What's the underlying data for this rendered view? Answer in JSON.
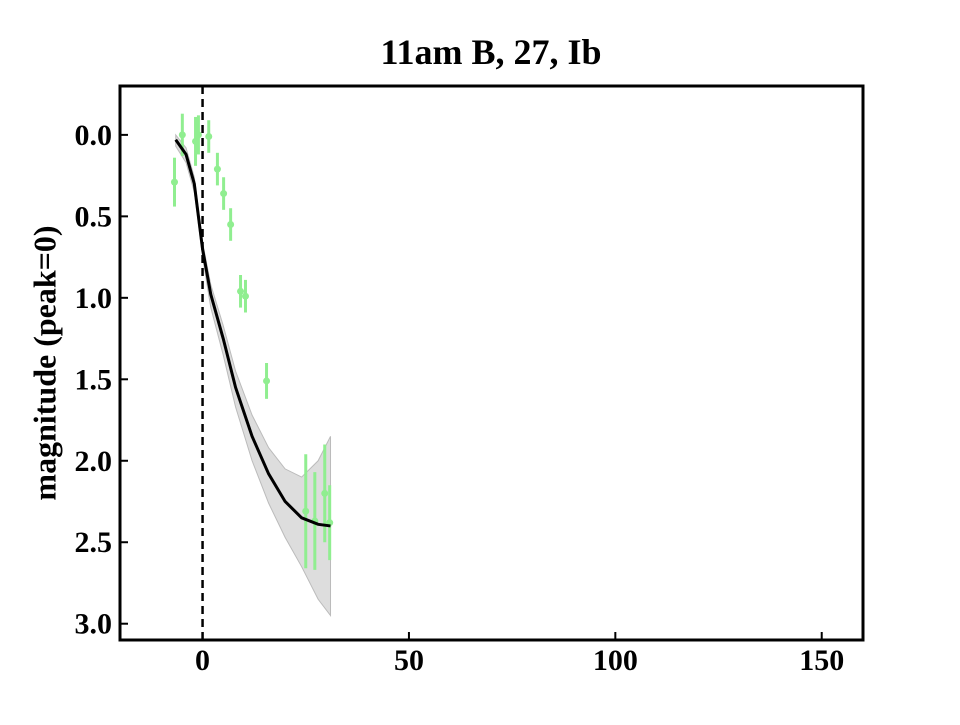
{
  "chart_data": {
    "type": "scatter",
    "title": "11am B, 27, Ib",
    "ylabel": "magnitude (peak=0)",
    "xlim": [
      -20,
      160
    ],
    "ylim": [
      -0.3,
      3.1
    ],
    "invert_y": true,
    "xticks": [
      0,
      50,
      100,
      150
    ],
    "yticks": [
      {
        "value": 0,
        "label": "0.0"
      },
      {
        "value": 0.5,
        "label": "0.5"
      },
      {
        "value": 1,
        "label": "1.0"
      },
      {
        "value": 1.5,
        "label": "1.5"
      },
      {
        "value": 2,
        "label": "2.0"
      },
      {
        "value": 2.5,
        "label": "2.5"
      },
      {
        "value": 3,
        "label": "3.0"
      }
    ],
    "vline": 0,
    "points": {
      "color": "#90ee90",
      "x": [
        -6.8,
        -4.9,
        -1.7,
        -1,
        1.5,
        3.6,
        5.1,
        6.8,
        9.2,
        10.4,
        15.5,
        25,
        27.2,
        29.6,
        30.8
      ],
      "values": [
        0.29,
        0.0,
        0.04,
        0.0,
        0.01,
        0.21,
        0.36,
        0.55,
        0.96,
        0.99,
        1.51,
        2.31,
        2.37,
        2.2,
        2.38
      ],
      "errors": [
        0.15,
        0.13,
        0.15,
        0.12,
        0.1,
        0.1,
        0.1,
        0.1,
        0.1,
        0.1,
        0.11,
        0.35,
        0.3,
        0.3,
        0.23
      ]
    },
    "fit": {
      "color": "#000000",
      "band_color": "#bbbbbb",
      "x": [
        -6.5,
        -4,
        -2,
        0,
        2,
        5,
        8,
        12,
        16,
        20,
        24,
        28,
        31
      ],
      "values": [
        0.03,
        0.12,
        0.3,
        0.7,
        0.98,
        1.25,
        1.55,
        1.85,
        2.08,
        2.25,
        2.35,
        2.39,
        2.4
      ],
      "lower": [
        0.0,
        0.08,
        0.26,
        0.66,
        0.92,
        1.17,
        1.45,
        1.72,
        1.92,
        2.05,
        2.1,
        2.0,
        1.85
      ],
      "upper": [
        0.07,
        0.17,
        0.35,
        0.75,
        1.06,
        1.35,
        1.67,
        2.0,
        2.26,
        2.47,
        2.65,
        2.85,
        2.95
      ]
    }
  }
}
